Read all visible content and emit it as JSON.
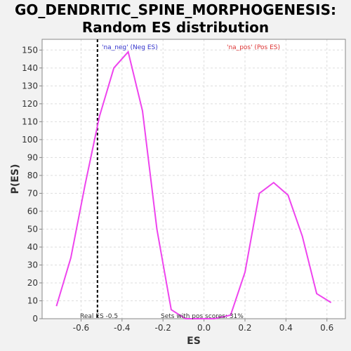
{
  "title_line1": "GO_DENDRITIC_SPINE_MORPHOGENESIS:",
  "title_line2": "Random ES distribution",
  "chart_data": {
    "type": "line",
    "xlabel": "ES",
    "ylabel": "P(ES)",
    "xlim": [
      -0.79,
      0.69
    ],
    "ylim": [
      0,
      156
    ],
    "x_ticks": [
      -0.6,
      -0.4,
      -0.2,
      0.0,
      0.2,
      0.4,
      0.6
    ],
    "x_tick_labels": [
      "-0.6",
      "-0.4",
      "-0.2",
      "0.0",
      "0.2",
      "0.4",
      "0.6"
    ],
    "y_ticks": [
      0,
      10,
      20,
      30,
      40,
      50,
      60,
      70,
      80,
      90,
      100,
      110,
      120,
      130,
      140,
      150
    ],
    "y_tick_labels": [
      "0",
      "10",
      "20",
      "30",
      "40",
      "50",
      "60",
      "70",
      "80",
      "90",
      "100",
      "110",
      "120",
      "130",
      "140",
      "150"
    ],
    "grid": true,
    "series": [
      {
        "color": "#ee44ee",
        "x": [
          -0.72,
          -0.65,
          -0.58,
          -0.51,
          -0.44,
          -0.37,
          -0.3,
          -0.23,
          -0.16,
          -0.09,
          -0.02,
          0.05,
          0.13,
          0.2,
          0.27,
          0.34,
          0.41,
          0.48,
          0.55,
          0.62
        ],
        "y": [
          7,
          34,
          75,
          113,
          140,
          149,
          116,
          50,
          5,
          0,
          0,
          0,
          2,
          26,
          70,
          76,
          69,
          46,
          14,
          9
        ]
      }
    ],
    "real_es": -0.52,
    "annotations": {
      "neg_label": "'na_neg' (Neg ES)",
      "pos_label": "'na_pos' (Pos ES)",
      "real_es_label": "Real ES -0.5",
      "sets_pos_label": "Sets with pos scores: 31%"
    },
    "colors": {
      "plot_background": "#ffffff",
      "neg_label": "#3333cc",
      "pos_label": "#dd3333",
      "line": "#ee44ee",
      "real_es_line": "#000000"
    }
  }
}
